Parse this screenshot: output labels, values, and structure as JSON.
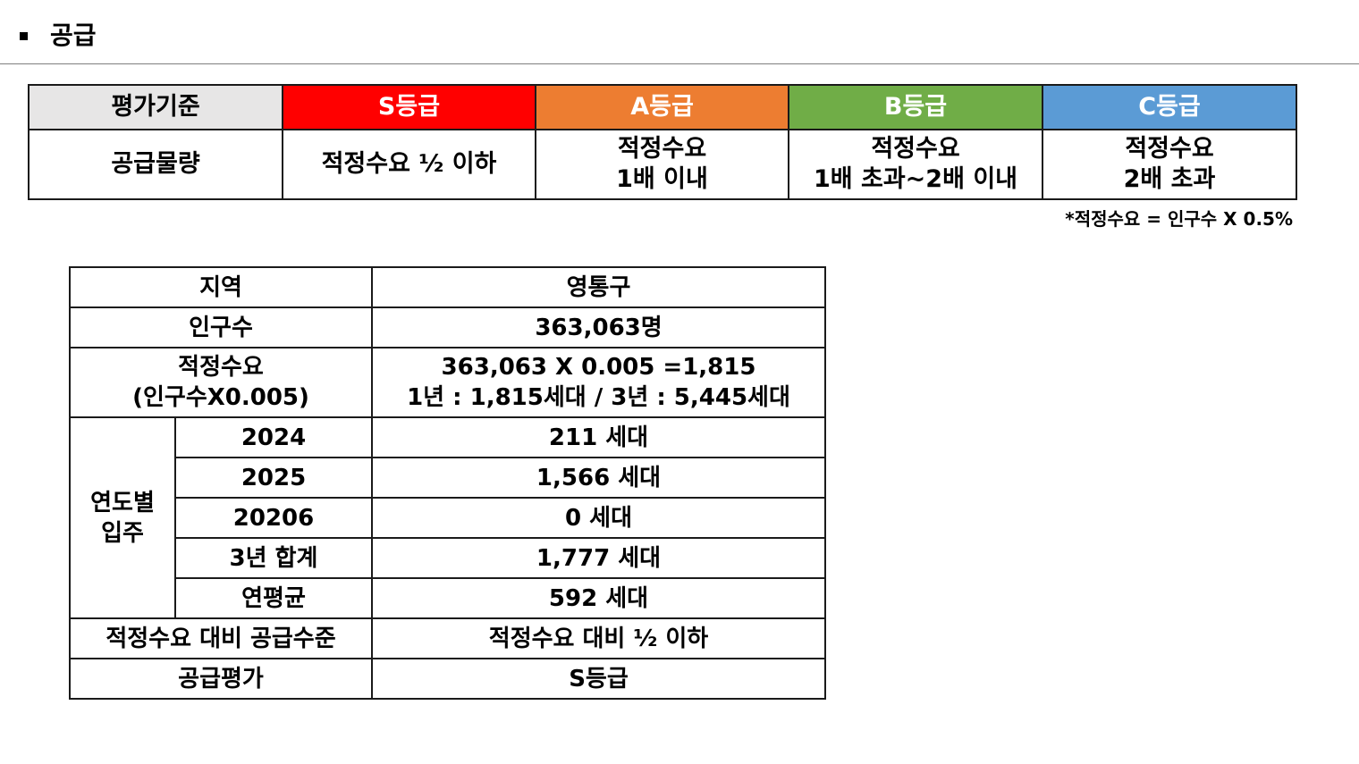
{
  "header": {
    "title": "공급"
  },
  "grade_table": {
    "header": {
      "criteria": "평가기준",
      "s": "S등급",
      "a": "A등급",
      "b": "B등급",
      "c": "C등급"
    },
    "row": {
      "label": "공급물량",
      "s": "적정수요 ½ 이하",
      "a_line1": "적정수요",
      "a_line2": "1배 이내",
      "b_line1": "적정수요",
      "b_line2": "1배 초과~2배 이내",
      "c_line1": "적정수요",
      "c_line2": "2배 초과"
    },
    "colors": {
      "s": "#ff0000",
      "a": "#ed7d31",
      "b": "#70ad47",
      "c": "#5b9bd5",
      "criteria": "#e7e6e6"
    }
  },
  "note": "*적정수요 = 인구수 X 0.5%",
  "area_table": {
    "region_label": "지역",
    "region_value": "영통구",
    "population_label": "인구수",
    "population_value": "363,063명",
    "demand_label_line1": "적정수요",
    "demand_label_line2": "(인구수X0.005)",
    "demand_value_line1": "363,063 X 0.005 =1,815",
    "demand_value_line2": "1년 : 1,815세대 / 3년 : 5,445세대",
    "yearly_label_line1": "연도별",
    "yearly_label_line2": "입주",
    "yearly": [
      {
        "year": "2024",
        "value": "211 세대"
      },
      {
        "year": "2025",
        "value": "1,566 세대"
      },
      {
        "year": "20206",
        "value": "0 세대"
      },
      {
        "year": "3년 합계",
        "value": "1,777 세대"
      },
      {
        "year": "연평균",
        "value": "592 세대"
      }
    ],
    "supply_level_label": "적정수요 대비 공급수준",
    "supply_level_value": "적정수요 대비 ½ 이하",
    "evaluation_label": "공급평가",
    "evaluation_value": "S등급"
  }
}
